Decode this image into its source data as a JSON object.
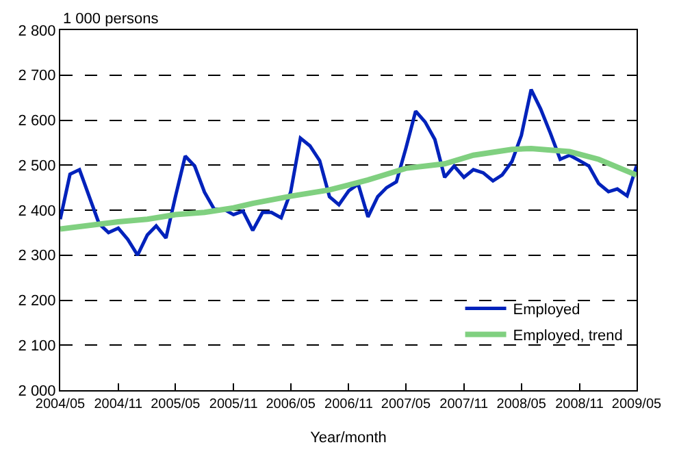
{
  "chart_data": {
    "type": "line",
    "ylabel": "1 000 persons",
    "xlabel": "Year/month",
    "x": [
      "2004-05",
      "2004-06",
      "2004-07",
      "2004-08",
      "2004-09",
      "2004-10",
      "2004-11",
      "2004-12",
      "2005-01",
      "2005-02",
      "2005-03",
      "2005-04",
      "2005-05",
      "2005-06",
      "2005-07",
      "2005-08",
      "2005-09",
      "2005-10",
      "2005-11",
      "2005-12",
      "2006-01",
      "2006-02",
      "2006-03",
      "2006-04",
      "2006-05",
      "2006-06",
      "2006-07",
      "2006-08",
      "2006-09",
      "2006-10",
      "2006-11",
      "2006-12",
      "2007-01",
      "2007-02",
      "2007-03",
      "2007-04",
      "2007-05",
      "2007-06",
      "2007-07",
      "2007-08",
      "2007-09",
      "2007-10",
      "2007-11",
      "2007-12",
      "2008-01",
      "2008-02",
      "2008-03",
      "2008-04",
      "2008-05",
      "2008-06",
      "2008-07",
      "2008-08",
      "2008-09",
      "2008-10",
      "2008-11",
      "2008-12",
      "2009-01",
      "2009-02",
      "2009-03",
      "2009-04",
      "2009-05"
    ],
    "series": [
      {
        "name": "Employed",
        "color": "#0022bb",
        "values": [
          2380,
          2480,
          2490,
          2430,
          2370,
          2350,
          2360,
          2335,
          2300,
          2345,
          2365,
          2338,
          2430,
          2520,
          2498,
          2440,
          2402,
          2402,
          2390,
          2398,
          2355,
          2395,
          2395,
          2383,
          2440,
          2560,
          2543,
          2510,
          2430,
          2412,
          2443,
          2458,
          2385,
          2430,
          2450,
          2463,
          2537,
          2620,
          2596,
          2557,
          2473,
          2498,
          2473,
          2490,
          2483,
          2465,
          2478,
          2508,
          2566,
          2668,
          2625,
          2571,
          2513,
          2522,
          2510,
          2498,
          2459,
          2441,
          2447,
          2432,
          2498
        ]
      },
      {
        "name": "Employed, trend",
        "color": "#80d080",
        "x": [
          "2004-05",
          "2004-11",
          "2005-02",
          "2005-05",
          "2005-08",
          "2005-11",
          "2006-01",
          "2006-05",
          "2006-09",
          "2007-01",
          "2007-05",
          "2007-09",
          "2007-12",
          "2008-04",
          "2008-06",
          "2008-10",
          "2009-01",
          "2009-05"
        ],
        "values": [
          2358,
          2374,
          2380,
          2390,
          2395,
          2405,
          2415,
          2431,
          2445,
          2467,
          2493,
          2503,
          2522,
          2535,
          2537,
          2530,
          2513,
          2478
        ]
      }
    ],
    "xlim": [
      "2004-05",
      "2009-05"
    ],
    "xticks": [
      {
        "value": "2004-05",
        "label": "2004/05"
      },
      {
        "value": "2004-11",
        "label": "2004/11"
      },
      {
        "value": "2005-05",
        "label": "2005/05"
      },
      {
        "value": "2005-11",
        "label": "2005/11"
      },
      {
        "value": "2006-05",
        "label": "2006/05"
      },
      {
        "value": "2006-11",
        "label": "2006/11"
      },
      {
        "value": "2007-05",
        "label": "2007/05"
      },
      {
        "value": "2007-11",
        "label": "2007/11"
      },
      {
        "value": "2008-05",
        "label": "2008/05"
      },
      {
        "value": "2008-11",
        "label": "2008/11"
      },
      {
        "value": "2009-05",
        "label": "2009/05"
      }
    ],
    "ylim": [
      2000,
      2800
    ],
    "yticks": [
      {
        "value": 2000,
        "label": "2 000"
      },
      {
        "value": 2100,
        "label": "2 100"
      },
      {
        "value": 2200,
        "label": "2 200"
      },
      {
        "value": 2300,
        "label": "2 300"
      },
      {
        "value": 2400,
        "label": "2 400"
      },
      {
        "value": 2500,
        "label": "2 500"
      },
      {
        "value": 2600,
        "label": "2 600"
      },
      {
        "value": 2700,
        "label": "2 700"
      },
      {
        "value": 2800,
        "label": "2 800"
      }
    ],
    "grid": "y",
    "legend": "bottom right",
    "marker": "none",
    "line_style": "solid"
  }
}
